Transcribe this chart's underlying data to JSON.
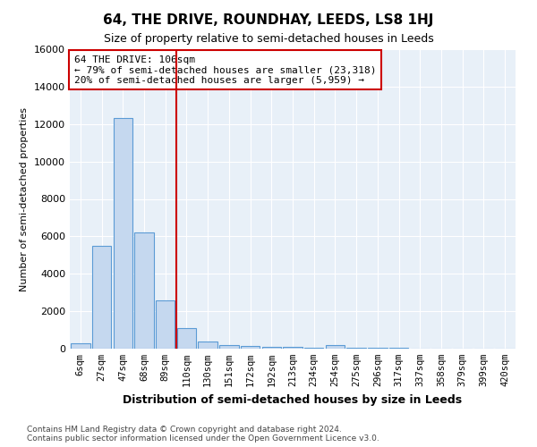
{
  "title": "64, THE DRIVE, ROUNDHAY, LEEDS, LS8 1HJ",
  "subtitle": "Size of property relative to semi-detached houses in Leeds",
  "xlabel": "Distribution of semi-detached houses by size in Leeds",
  "ylabel": "Number of semi-detached properties",
  "bar_labels": [
    "6sqm",
    "27sqm",
    "47sqm",
    "68sqm",
    "89sqm",
    "110sqm",
    "130sqm",
    "151sqm",
    "172sqm",
    "192sqm",
    "213sqm",
    "234sqm",
    "254sqm",
    "275sqm",
    "296sqm",
    "317sqm",
    "337sqm",
    "358sqm",
    "379sqm",
    "399sqm",
    "420sqm"
  ],
  "bar_values": [
    300,
    5500,
    12300,
    6200,
    2600,
    1100,
    400,
    200,
    150,
    100,
    100,
    50,
    200,
    50,
    50,
    50,
    0,
    0,
    0,
    0,
    0
  ],
  "bar_color": "#c5d8ef",
  "bar_edge_color": "#5b9bd5",
  "vline_color": "#cc0000",
  "annotation_box_text": "64 THE DRIVE: 106sqm\n← 79% of semi-detached houses are smaller (23,318)\n20% of semi-detached houses are larger (5,959) →",
  "annotation_box_color": "#cc0000",
  "ylim": [
    0,
    16000
  ],
  "yticks": [
    0,
    2000,
    4000,
    6000,
    8000,
    10000,
    12000,
    14000,
    16000
  ],
  "bg_color": "#e8f0f8",
  "footer_line1": "Contains HM Land Registry data © Crown copyright and database right 2024.",
  "footer_line2": "Contains public sector information licensed under the Open Government Licence v3.0."
}
